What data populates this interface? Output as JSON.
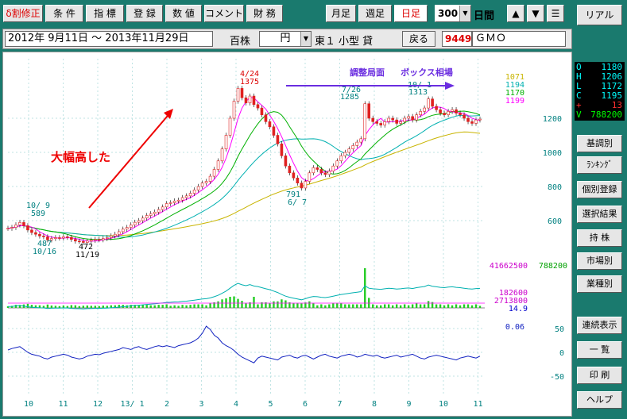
{
  "toolbar": {
    "buttons": [
      {
        "label": "δ割修正",
        "red": true
      },
      {
        "label": "条 件"
      },
      {
        "label": "指 標"
      },
      {
        "label": "登 録"
      },
      {
        "label": "数 値"
      },
      {
        "label": "コメント"
      },
      {
        "label": "財 務"
      }
    ],
    "periods": [
      {
        "label": "月足"
      },
      {
        "label": "週足"
      },
      {
        "label": "日足",
        "red": true
      }
    ],
    "count_value": "300",
    "count_unit": "日間",
    "nav": [
      "▲",
      "▼",
      "☰"
    ]
  },
  "infobar": {
    "date_range": "2012年 9月11日 〜 2013年11月29日",
    "unit": "百株",
    "currency": "円",
    "market": "東１",
    "size": "小型 貸",
    "back_label": "戻る",
    "code": "9449",
    "name": "ＧＭＯ"
  },
  "right_panel": {
    "top_button": "リアル",
    "ohlc": [
      {
        "k": "O",
        "v": "1180",
        "color": "#00ffff"
      },
      {
        "k": "H",
        "v": "1206",
        "color": "#00ffff"
      },
      {
        "k": "L",
        "v": "1172",
        "color": "#00ffff"
      },
      {
        "k": "C",
        "v": "1195",
        "color": "#00ffff"
      },
      {
        "k": "+",
        "v": "13",
        "color": "#ff3030"
      },
      {
        "k": "V",
        "v": "788200",
        "color": "#00ff00"
      }
    ],
    "buttons": [
      "基調別",
      "ﾗﾝｷﾝｸﾞ",
      "個別登録",
      "選択結果",
      "持 株",
      "市場別",
      "業種別",
      "連続表示",
      "一 覧",
      "印 刷",
      "ヘルプ"
    ]
  },
  "chart_data": {
    "type": "line",
    "months": [
      "10",
      "11",
      "12",
      "13/ 1",
      "2",
      "3",
      "4",
      "5",
      "6",
      "7",
      "8",
      "9",
      "10",
      "11"
    ],
    "price_axis": [
      "1200",
      "1000",
      "800",
      "600"
    ],
    "ma_values": [
      "1071",
      "1194",
      "1170",
      "1199"
    ],
    "ma_colors": [
      "#c8b400",
      "#00b0b0",
      "#00b000",
      "#ff00ff"
    ],
    "volume_labels": {
      "left_total": "41662500",
      "right_total": "788200",
      "v1": "182600",
      "v2": "2713800",
      "v3": "14.9"
    },
    "volume_label_colors": [
      "#cc00cc",
      "#00a000",
      "#cc00cc",
      "#cc00cc",
      "#0000cc"
    ],
    "osc_axis": [
      "50",
      "0",
      "-50"
    ],
    "osc_value": "0.06",
    "annotations": {
      "high1_date": "4/24",
      "high1_val": "1375",
      "low1_date": "6/ 7",
      "low1_val": "791",
      "peak_jul": "7/26",
      "peak_jul_val": "1285",
      "peak_oct": "10/ 1",
      "peak_oct_val": "1313",
      "oct9": "10/ 9",
      "oct9_val": "589",
      "low_oct16": "10/16",
      "low_oct16_val": "487",
      "low_nov19": "11/19",
      "low_nov19_val": "472",
      "rally": "大幅高した",
      "consolidation": "調整局面",
      "box": "ボックス相場"
    },
    "close_series": [
      555,
      560,
      575,
      589,
      570,
      545,
      530,
      520,
      510,
      505,
      487,
      495,
      500,
      498,
      505,
      502,
      490,
      480,
      478,
      472,
      480,
      485,
      490,
      488,
      495,
      500,
      510,
      520,
      535,
      550,
      560,
      575,
      590,
      600,
      615,
      630,
      640,
      650,
      665,
      680,
      700,
      705,
      715,
      720,
      735,
      745,
      760,
      780,
      800,
      820,
      830,
      860,
      900,
      950,
      1020,
      1100,
      1200,
      1300,
      1375,
      1320,
      1290,
      1330,
      1280,
      1260,
      1220,
      1180,
      1150,
      1100,
      1050,
      980,
      920,
      880,
      850,
      820,
      791,
      830,
      880,
      910,
      900,
      880,
      870,
      890,
      920,
      950,
      980,
      1000,
      1020,
      1040,
      1060,
      1080,
      1285,
      1200,
      1180,
      1170,
      1160,
      1180,
      1200,
      1190,
      1170,
      1180,
      1200,
      1210,
      1190,
      1220,
      1240,
      1260,
      1313,
      1270,
      1250,
      1230,
      1220,
      1240,
      1250,
      1230,
      1220,
      1200,
      1180,
      1170,
      1190,
      1195
    ],
    "osc_series": [
      5,
      8,
      10,
      12,
      6,
      0,
      -4,
      -6,
      -8,
      -12,
      -14,
      -10,
      -8,
      -6,
      -4,
      -6,
      -10,
      -12,
      -14,
      -12,
      -8,
      -6,
      -4,
      -5,
      -2,
      0,
      2,
      4,
      6,
      10,
      8,
      6,
      10,
      12,
      8,
      6,
      9,
      12,
      14,
      12,
      14,
      12,
      10,
      14,
      16,
      18,
      20,
      24,
      30,
      40,
      55,
      48,
      36,
      30,
      20,
      14,
      10,
      4,
      -4,
      -10,
      -14,
      -18,
      -22,
      -12,
      -8,
      -10,
      -12,
      -14,
      -16,
      -10,
      -8,
      -6,
      -10,
      -12,
      -8,
      -6,
      -10,
      -14,
      -10,
      -6,
      -4,
      -8,
      -10,
      -12,
      -8,
      -6,
      -4,
      -6,
      -10,
      -8,
      -4,
      -6,
      -8,
      -6,
      -10,
      -12,
      -10,
      -8,
      -6,
      -10,
      -8,
      -6,
      -4,
      -8,
      -12,
      -14,
      -10,
      -8,
      -6,
      -8,
      -10,
      -12,
      -14,
      -16,
      -12,
      -10,
      -8,
      -10,
      -12,
      -8
    ]
  }
}
